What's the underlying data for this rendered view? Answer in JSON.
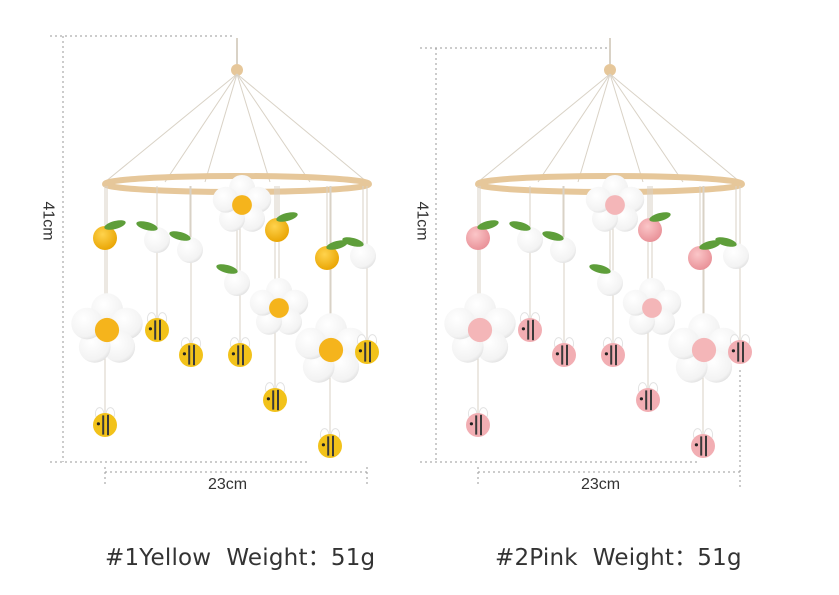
{
  "left_product": {
    "height_label": "41cm",
    "width_label": "23cm",
    "caption": "#1Yellow  Weight：51g",
    "palette": {
      "ball": "#f4b400",
      "flower_center": "#f5b41c",
      "bee": "#f2c21a"
    }
  },
  "right_product": {
    "height_label": "41cm",
    "width_label": "23cm",
    "caption": "#2Pink  Weight：51g",
    "palette": {
      "ball": "#f3a3a8",
      "flower_center": "#f4b6b8",
      "bee": "#f2aeb3"
    }
  },
  "colors": {
    "wood_hoop": "#e6c79a",
    "string": "#d9d2c6",
    "felt_white": "#ffffff",
    "leaf_green": "#5e9e3a",
    "dimension_line": "#9a9a9a"
  }
}
